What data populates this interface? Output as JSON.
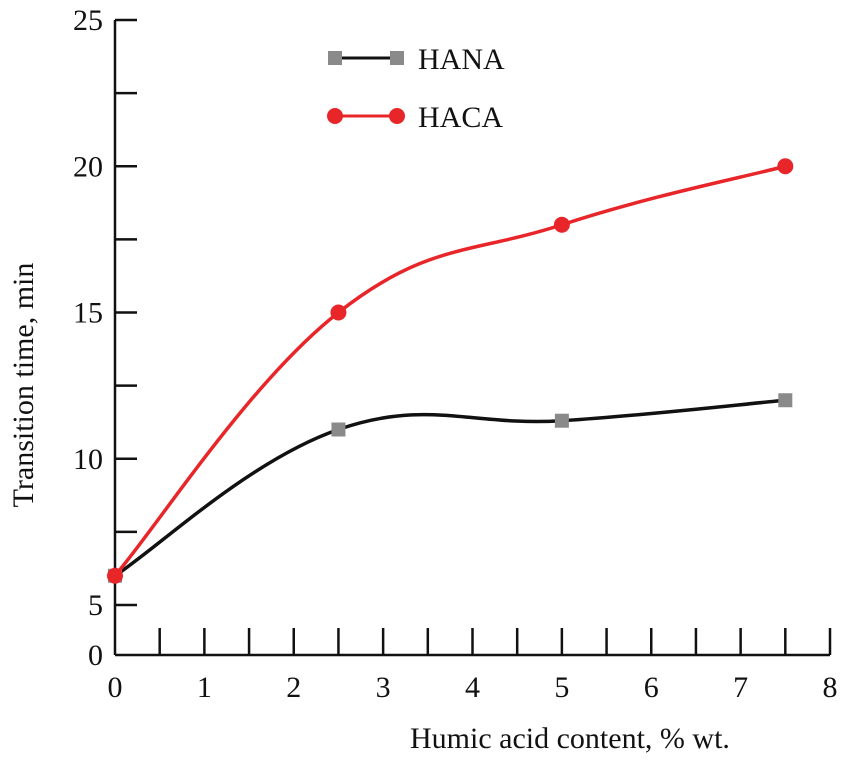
{
  "chart_data": {
    "type": "line",
    "title": "",
    "xlabel": "Humic acid content, % wt.",
    "ylabel": "Transition time, min",
    "xlim": [
      0,
      8
    ],
    "ylim": [
      0,
      25
    ],
    "x_ticks": [
      "0",
      "1",
      "2",
      "3",
      "4",
      "5",
      "6",
      "7",
      "8"
    ],
    "y_ticks": [
      {
        "value": 0,
        "label": "0"
      },
      {
        "value": 5,
        "label": "5"
      },
      {
        "value": 10,
        "label": "10"
      },
      {
        "value": 15,
        "label": "15"
      },
      {
        "value": 20,
        "label": "20"
      },
      {
        "value": 25,
        "label": "25"
      }
    ],
    "grid": false,
    "legend_position": "top-center",
    "series": [
      {
        "name": "HANA",
        "color": "#111111",
        "marker": "square",
        "marker_color": "#8a8a8a",
        "x": [
          0,
          2.5,
          5,
          7.5
        ],
        "y": [
          6,
          11,
          11.3,
          12
        ]
      },
      {
        "name": "HACA",
        "color": "#e8262a",
        "marker": "circle",
        "marker_color": "#e8262a",
        "x": [
          0,
          2.5,
          5,
          7.5
        ],
        "y": [
          6,
          15,
          18,
          20
        ]
      }
    ]
  }
}
